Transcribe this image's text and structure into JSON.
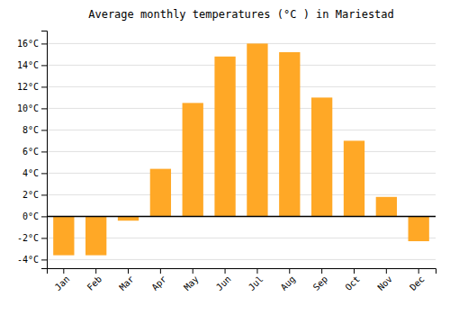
{
  "chart_data": {
    "type": "bar",
    "title": "Average monthly temperatures (°C ) in Mariestad",
    "categories": [
      "Jan",
      "Feb",
      "Mar",
      "Apr",
      "May",
      "Jun",
      "Jul",
      "Aug",
      "Sep",
      "Oct",
      "Nov",
      "Dec"
    ],
    "values": [
      -3.6,
      -3.6,
      -0.4,
      4.4,
      10.5,
      14.8,
      16.0,
      15.2,
      11.0,
      7.0,
      1.8,
      -2.3
    ],
    "color": "#FFA826",
    "ylim": [
      -4.8,
      17.2
    ],
    "yticks": [
      {
        "value": -4,
        "label": "-4°C"
      },
      {
        "value": -2,
        "label": "-2°C"
      },
      {
        "value": 0,
        "label": "0°C"
      },
      {
        "value": 2,
        "label": "2°C"
      },
      {
        "value": 4,
        "label": "4°C"
      },
      {
        "value": 6,
        "label": "6°C"
      },
      {
        "value": 8,
        "label": "8°C"
      },
      {
        "value": 10,
        "label": "10°C"
      },
      {
        "value": 12,
        "label": "12°C"
      },
      {
        "value": 14,
        "label": "14°C"
      },
      {
        "value": 16,
        "label": "16°C"
      }
    ],
    "grid": true
  }
}
